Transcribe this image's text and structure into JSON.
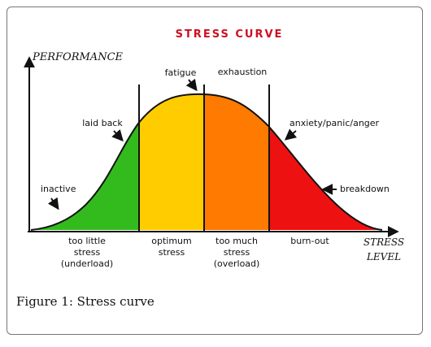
{
  "title": "STRESS CURVE",
  "y_axis_label": "PERFORMANCE",
  "x_axis_label_line1": "STRESS",
  "x_axis_label_line2": "LEVEL",
  "annotations": {
    "fatigue": "fatigue",
    "exhaustion": "exhaustion",
    "laid_back": "laid back",
    "anxiety": "anxiety/panic/anger",
    "inactive": "inactive",
    "breakdown": "breakdown"
  },
  "zones": [
    {
      "key": "too_little",
      "line1": "too little",
      "line2": "stress",
      "line3": "(underload)",
      "color": "#33bb1e"
    },
    {
      "key": "optimum",
      "line1": "optimum",
      "line2": "stress",
      "line3": "",
      "color": "#ffcc00"
    },
    {
      "key": "too_much",
      "line1": "too much",
      "line2": "stress",
      "line3": "(overload)",
      "color": "#ff7a00"
    },
    {
      "key": "burn_out",
      "line1": "burn-out",
      "line2": "",
      "line3": "",
      "color": "#ee1111"
    }
  ],
  "caption": {
    "label": "Figure 1:",
    "text": "Stress curve"
  },
  "colors": {
    "title": "#cc1122",
    "axis": "#111111"
  }
}
